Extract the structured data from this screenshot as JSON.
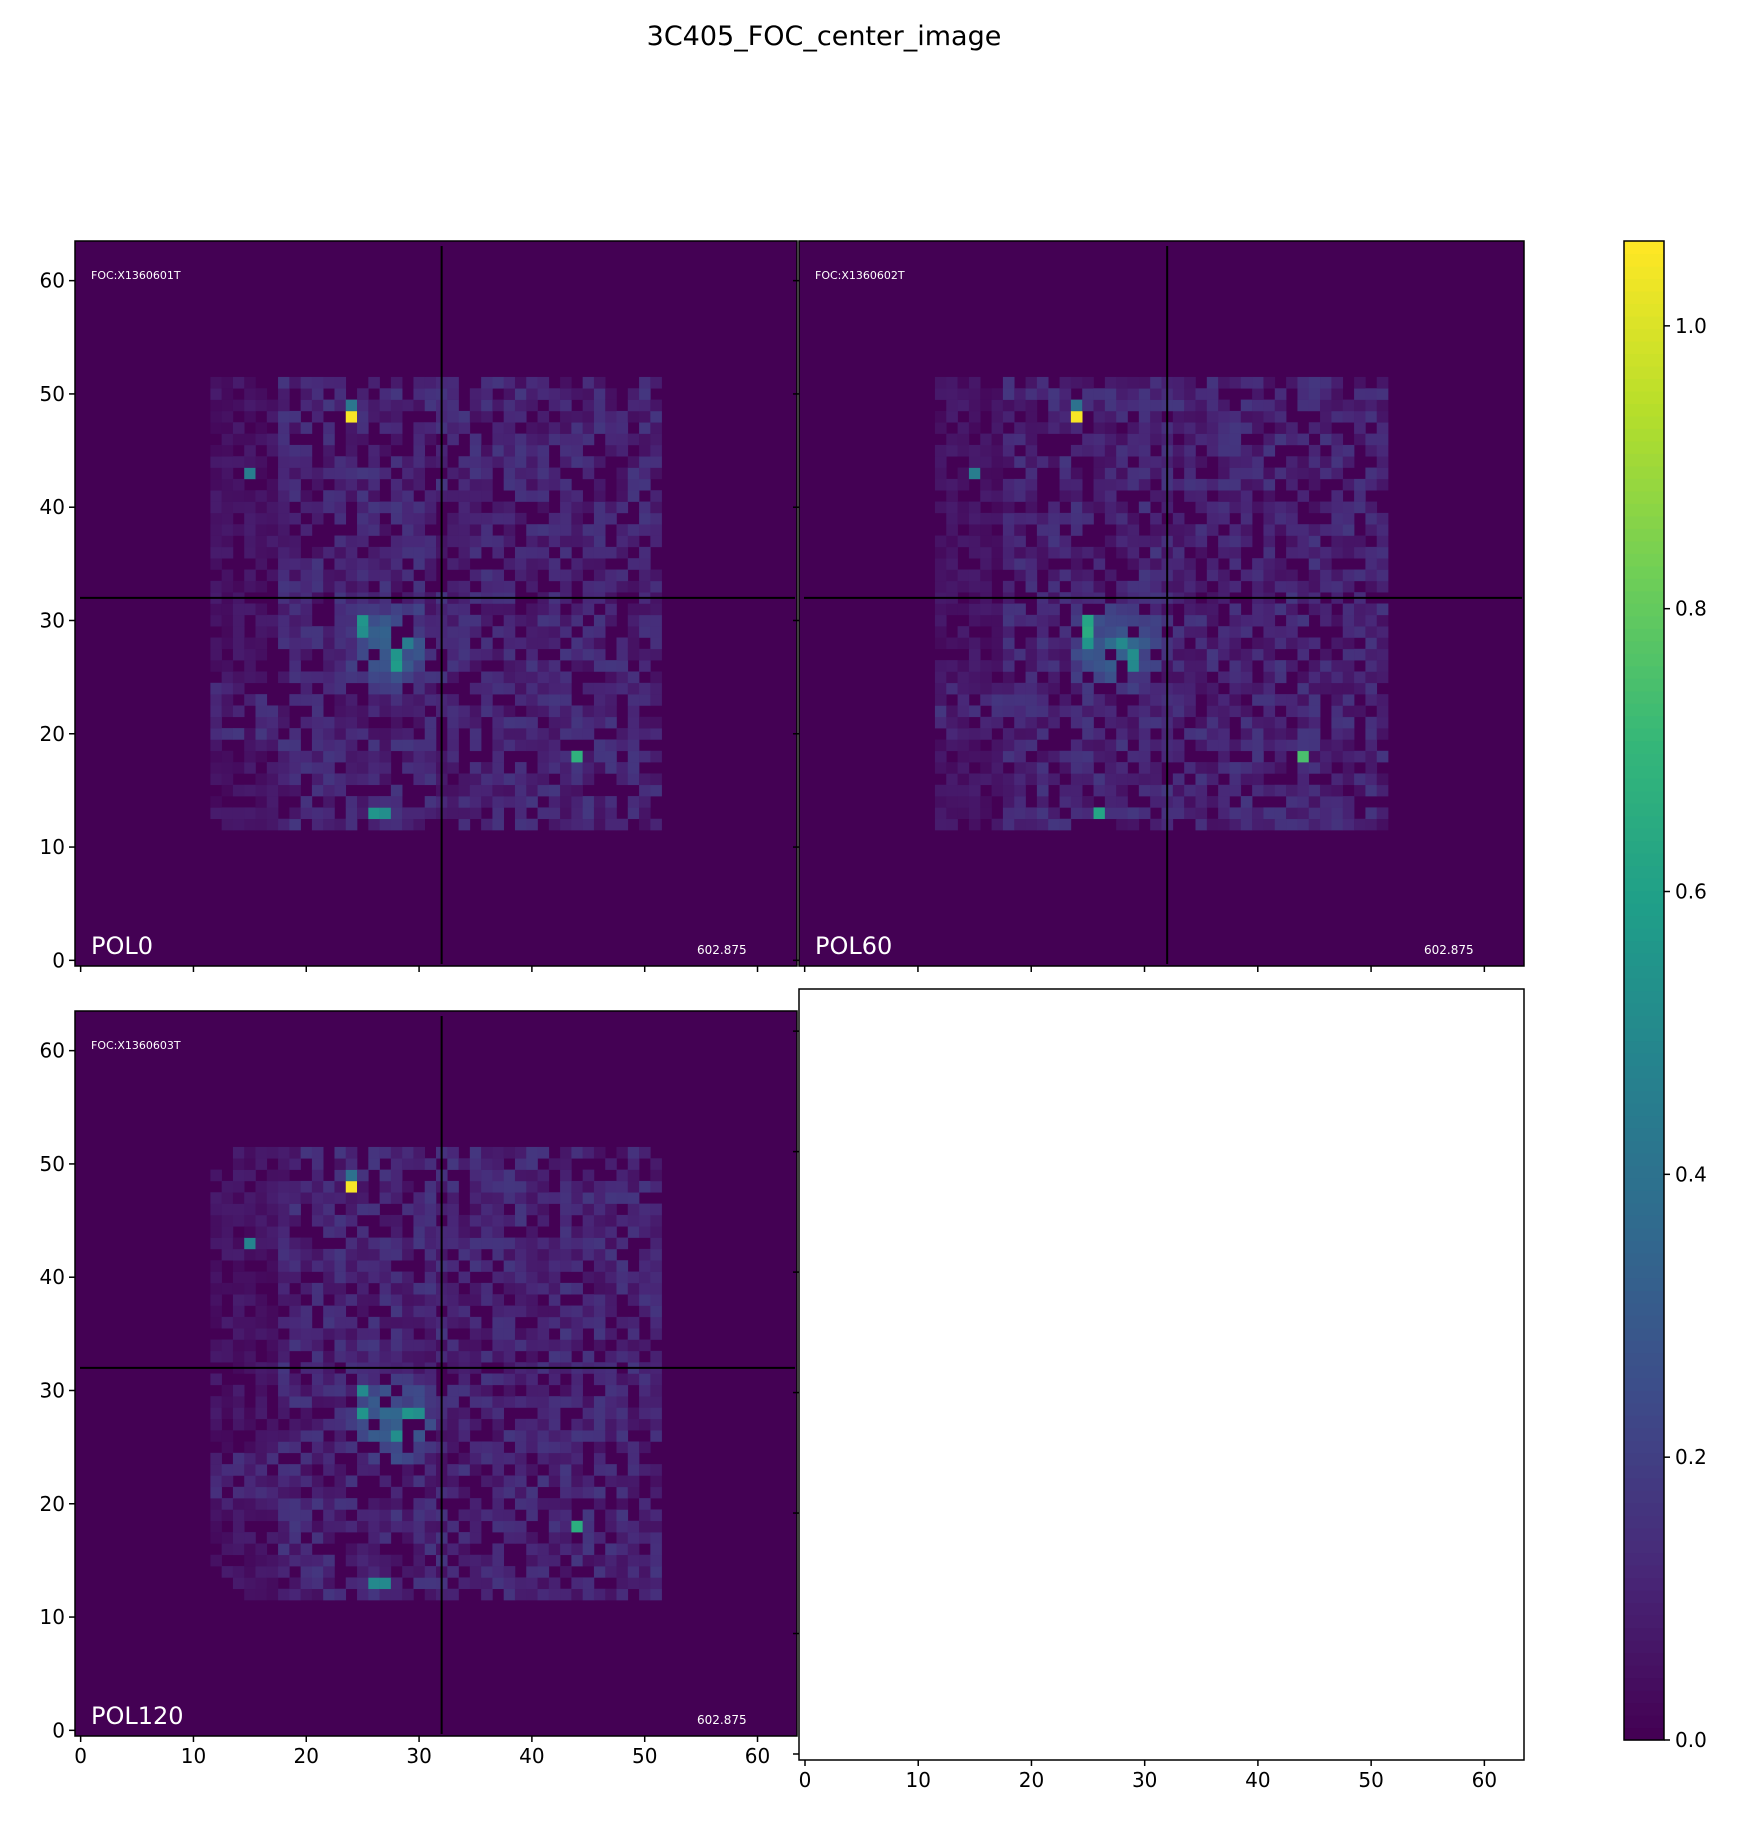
{
  "chart_data": {
    "type": "heatmap",
    "title": "3C405_FOC_center_image",
    "colormap": "viridis",
    "background_color": "#440154",
    "crosshair": {
      "x": 32,
      "y": 32,
      "color": "#000000"
    },
    "xlim": [
      -0.5,
      63.5
    ],
    "ylim": [
      -0.5,
      63.5
    ],
    "x_ticks": [
      "0",
      "10",
      "20",
      "30",
      "40",
      "50",
      "60"
    ],
    "y_ticks": [
      "0",
      "10",
      "20",
      "30",
      "40",
      "50",
      "60"
    ],
    "colorbar": {
      "range": [
        0.0,
        1.06
      ],
      "ticks": [
        "0.0",
        "0.2",
        "0.4",
        "0.6",
        "0.8",
        "1.0"
      ]
    },
    "emission_region": {
      "x": [
        12,
        51
      ],
      "y": [
        12,
        51
      ]
    },
    "panels": [
      {
        "label": "POL0",
        "id": "FOC:X1360601T",
        "exposure": "602.875",
        "sources": [
          {
            "x": 24,
            "y": 48,
            "value": 1.05
          },
          {
            "x": 24,
            "y": 49,
            "value": 0.42
          },
          {
            "x": 15,
            "y": 43,
            "value": 0.45
          },
          {
            "x": 25,
            "y": 30,
            "value": 0.55
          },
          {
            "x": 25,
            "y": 29,
            "value": 0.52
          },
          {
            "x": 28,
            "y": 27,
            "value": 0.55
          },
          {
            "x": 28,
            "y": 26,
            "value": 0.58
          },
          {
            "x": 29,
            "y": 28,
            "value": 0.45
          },
          {
            "x": 44,
            "y": 18,
            "value": 0.68
          },
          {
            "x": 26,
            "y": 13,
            "value": 0.55
          },
          {
            "x": 27,
            "y": 13,
            "value": 0.52
          }
        ]
      },
      {
        "label": "POL60",
        "id": "FOC:X1360602T",
        "exposure": "602.875",
        "sources": [
          {
            "x": 24,
            "y": 48,
            "value": 1.05
          },
          {
            "x": 24,
            "y": 49,
            "value": 0.4
          },
          {
            "x": 15,
            "y": 43,
            "value": 0.45
          },
          {
            "x": 25,
            "y": 30,
            "value": 0.62
          },
          {
            "x": 25,
            "y": 29,
            "value": 0.65
          },
          {
            "x": 25,
            "y": 28,
            "value": 0.55
          },
          {
            "x": 28,
            "y": 28,
            "value": 0.5
          },
          {
            "x": 29,
            "y": 27,
            "value": 0.52
          },
          {
            "x": 29,
            "y": 26,
            "value": 0.5
          },
          {
            "x": 44,
            "y": 18,
            "value": 0.75
          },
          {
            "x": 26,
            "y": 13,
            "value": 0.62
          }
        ]
      },
      {
        "label": "POL120",
        "id": "FOC:X1360603T",
        "exposure": "602.875",
        "sources": [
          {
            "x": 24,
            "y": 48,
            "value": 1.05
          },
          {
            "x": 24,
            "y": 49,
            "value": 0.4
          },
          {
            "x": 15,
            "y": 43,
            "value": 0.48
          },
          {
            "x": 25,
            "y": 30,
            "value": 0.5
          },
          {
            "x": 25,
            "y": 28,
            "value": 0.55
          },
          {
            "x": 29,
            "y": 28,
            "value": 0.55
          },
          {
            "x": 30,
            "y": 28,
            "value": 0.52
          },
          {
            "x": 28,
            "y": 26,
            "value": 0.52
          },
          {
            "x": 44,
            "y": 18,
            "value": 0.66
          },
          {
            "x": 26,
            "y": 13,
            "value": 0.5
          },
          {
            "x": 27,
            "y": 13,
            "value": 0.5
          }
        ]
      }
    ]
  }
}
